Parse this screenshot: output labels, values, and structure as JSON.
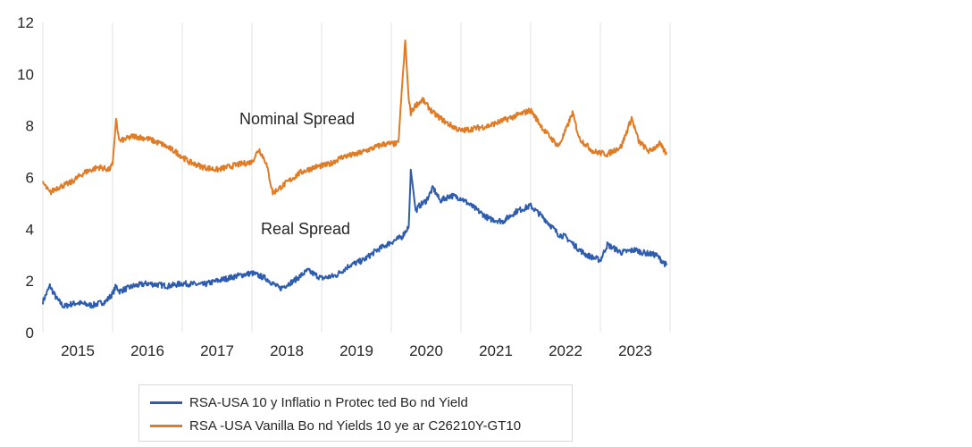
{
  "chart_data": {
    "type": "line",
    "title": "",
    "xlabel": "",
    "ylabel": "",
    "ylim": [
      0,
      12
    ],
    "xlim": [
      2014.5,
      2023.5
    ],
    "y_ticks": [
      "0",
      "2",
      "4",
      "6",
      "8",
      "10",
      "12"
    ],
    "x_ticks": [
      "2015",
      "2016",
      "2017",
      "2018",
      "2019",
      "2020",
      "2021",
      "2022",
      "2023"
    ],
    "grid": "vertical",
    "legend_position": "bottom",
    "annotations": {
      "nominal": "Nominal Spread",
      "real": "Real Spread"
    },
    "series": [
      {
        "name": "RSA-USA 10 y Inflatio n Protec ted Bo nd Yield",
        "color": "#2e5caf",
        "x": [
          2014.5,
          2014.6,
          2014.7,
          2014.8,
          2014.9,
          2015.0,
          2015.2,
          2015.4,
          2015.5,
          2015.55,
          2015.6,
          2015.8,
          2016.0,
          2016.3,
          2016.5,
          2016.8,
          2017.0,
          2017.3,
          2017.5,
          2017.7,
          2017.9,
          2018.1,
          2018.3,
          2018.5,
          2018.7,
          2018.9,
          2019.1,
          2019.3,
          2019.5,
          2019.65,
          2019.75,
          2019.78,
          2019.85,
          2019.9,
          2020.0,
          2020.1,
          2020.2,
          2020.35,
          2020.5,
          2020.7,
          2020.9,
          2021.1,
          2021.3,
          2021.5,
          2021.7,
          2021.9,
          2022.0,
          2022.2,
          2022.3,
          2022.5,
          2022.6,
          2022.8,
          2023.0,
          2023.1,
          2023.3,
          2023.45
        ],
        "values": [
          1.2,
          1.8,
          1.3,
          1.0,
          1.1,
          1.15,
          1.05,
          1.2,
          1.5,
          1.8,
          1.6,
          1.8,
          1.9,
          1.8,
          1.9,
          1.85,
          2.0,
          2.2,
          2.3,
          2.1,
          1.7,
          2.0,
          2.4,
          2.1,
          2.2,
          2.6,
          2.8,
          3.2,
          3.5,
          3.7,
          4.1,
          6.3,
          4.7,
          4.9,
          5.1,
          5.6,
          5.1,
          5.3,
          5.2,
          4.8,
          4.4,
          4.3,
          4.7,
          4.9,
          4.4,
          3.8,
          3.7,
          3.2,
          3.0,
          2.8,
          3.4,
          3.1,
          3.2,
          3.1,
          3.0,
          2.6
        ]
      },
      {
        "name": "RSA -USA Vanilla Bo nd Yields 10 ye ar C26210Y-GT10",
        "color": "#e07b26",
        "x": [
          2014.5,
          2014.6,
          2014.7,
          2014.9,
          2015.1,
          2015.3,
          2015.45,
          2015.5,
          2015.55,
          2015.6,
          2015.8,
          2016.0,
          2016.2,
          2016.4,
          2016.6,
          2016.8,
          2017.0,
          2017.3,
          2017.5,
          2017.6,
          2017.7,
          2017.8,
          2018.0,
          2018.2,
          2018.4,
          2018.6,
          2018.8,
          2019.0,
          2019.2,
          2019.4,
          2019.6,
          2019.7,
          2019.75,
          2019.78,
          2019.85,
          2019.95,
          2020.1,
          2020.3,
          2020.5,
          2020.7,
          2020.9,
          2021.1,
          2021.3,
          2021.5,
          2021.7,
          2021.9,
          2022.0,
          2022.1,
          2022.2,
          2022.4,
          2022.6,
          2022.8,
          2022.95,
          2023.05,
          2023.2,
          2023.35,
          2023.45
        ],
        "values": [
          5.8,
          5.4,
          5.6,
          5.8,
          6.2,
          6.4,
          6.3,
          6.5,
          8.2,
          7.4,
          7.6,
          7.5,
          7.3,
          7.0,
          6.6,
          6.4,
          6.3,
          6.5,
          6.6,
          7.1,
          6.6,
          5.4,
          5.8,
          6.2,
          6.4,
          6.5,
          6.8,
          6.9,
          7.1,
          7.3,
          7.3,
          11.3,
          9.0,
          8.5,
          8.8,
          9.0,
          8.5,
          8.1,
          7.8,
          7.9,
          8.0,
          8.2,
          8.4,
          8.6,
          7.8,
          7.2,
          7.8,
          8.5,
          7.5,
          7.0,
          6.9,
          7.2,
          8.3,
          7.4,
          7.0,
          7.3,
          6.9
        ]
      }
    ]
  }
}
